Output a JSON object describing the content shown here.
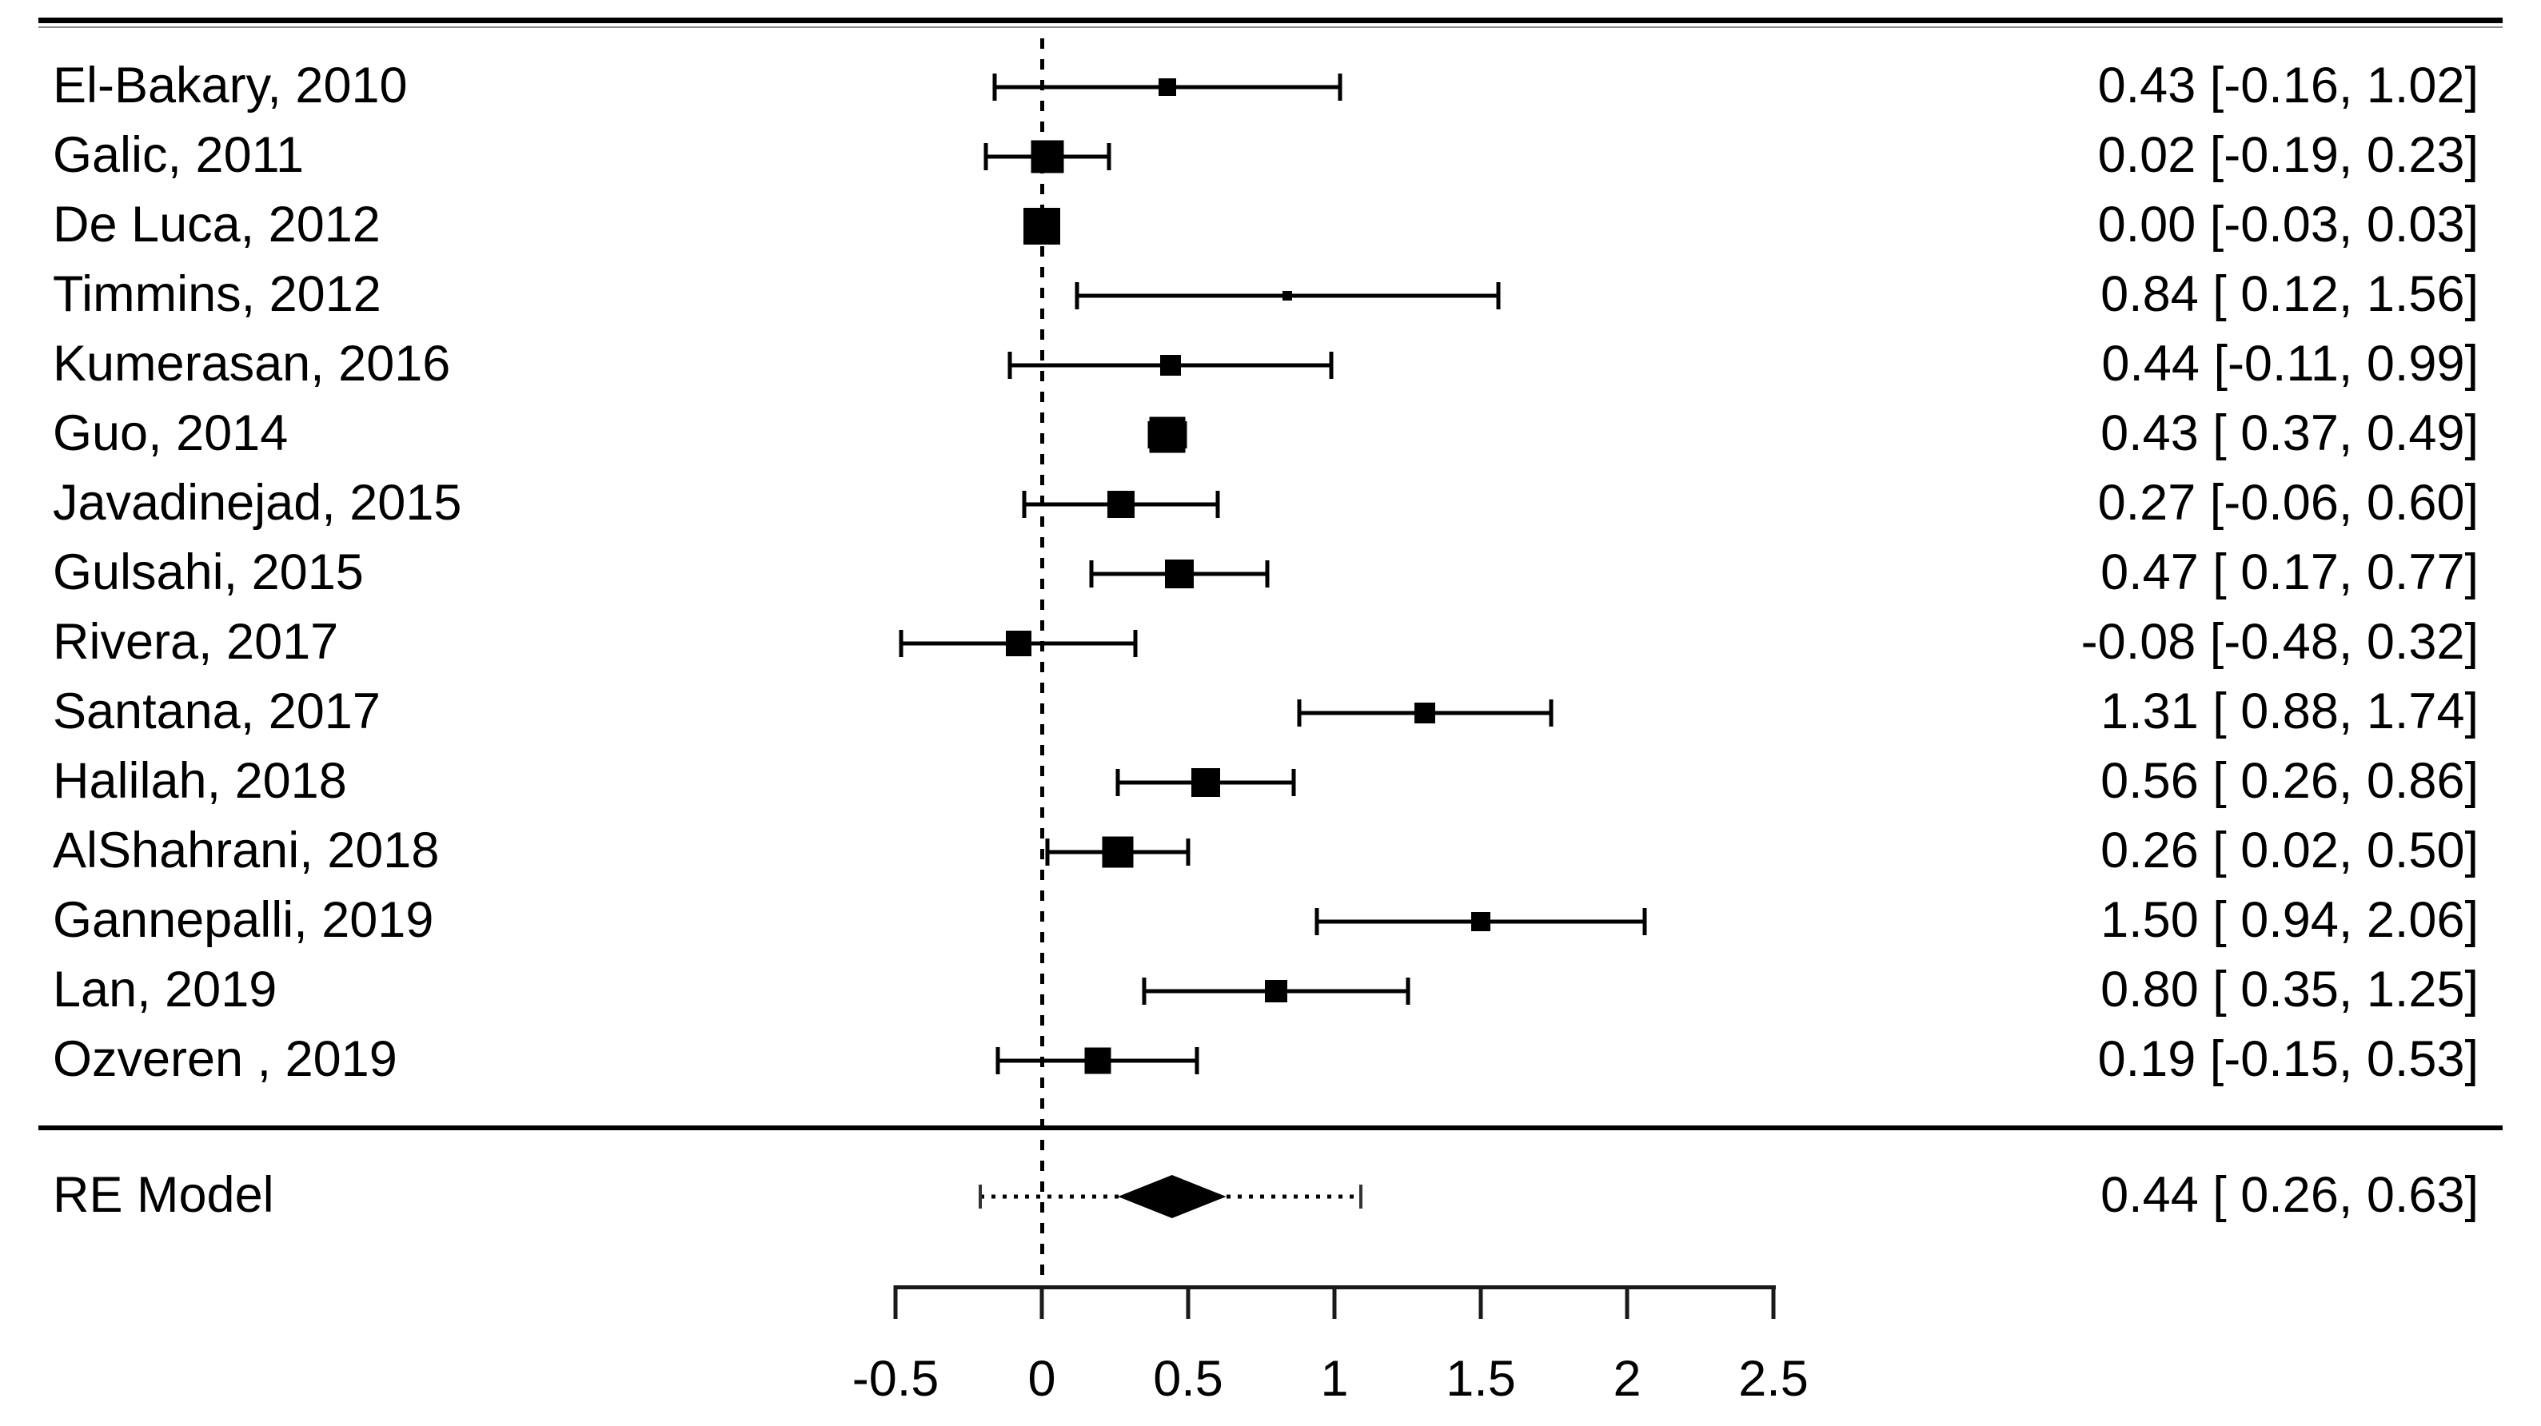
{
  "figure": {
    "kind": "forest-plot",
    "background_color": "#ffffff",
    "ink_color": "#000000"
  },
  "chart_data": {
    "type": "scatter",
    "subtype": "forest-plot-meta-analysis",
    "title": "",
    "xlabel": "",
    "ylabel": "",
    "x_axis": {
      "range": [
        -0.5,
        2.5
      ],
      "tick_values": [
        -0.5,
        0,
        0.5,
        1,
        1.5,
        2,
        2.5
      ],
      "tick_labels": [
        "-0.5",
        "0",
        "0.5",
        "1",
        "1.5",
        "2",
        "2.5"
      ],
      "reference_line_value": 0,
      "reference_line_style": "dashed"
    },
    "studies": [
      {
        "label": "El-Bakary, 2010",
        "estimate": 0.43,
        "ci_lower": -0.16,
        "ci_upper": 1.02,
        "estimate_text": "0.43 [-0.16, 1.02]",
        "marker_size": 22
      },
      {
        "label": "Galic, 2011",
        "estimate": 0.02,
        "ci_lower": -0.19,
        "ci_upper": 0.23,
        "estimate_text": "0.02 [-0.19, 0.23]",
        "marker_size": 41
      },
      {
        "label": "De Luca, 2012",
        "estimate": 0.0,
        "ci_lower": -0.03,
        "ci_upper": 0.03,
        "estimate_text": "0.00 [-0.03, 0.03]",
        "marker_size": 46
      },
      {
        "label": "Timmins, 2012",
        "estimate": 0.84,
        "ci_lower": 0.12,
        "ci_upper": 1.56,
        "estimate_text": "0.84 [ 0.12, 1.56]",
        "marker_size": 12
      },
      {
        "label": "Kumerasan, 2016",
        "estimate": 0.44,
        "ci_lower": -0.11,
        "ci_upper": 0.99,
        "estimate_text": "0.44 [-0.11, 0.99]",
        "marker_size": 26
      },
      {
        "label": "Guo, 2014",
        "estimate": 0.43,
        "ci_lower": 0.37,
        "ci_upper": 0.49,
        "estimate_text": "0.43 [ 0.37, 0.49]",
        "marker_size": 45
      },
      {
        "label": "Javadinejad, 2015",
        "estimate": 0.27,
        "ci_lower": -0.06,
        "ci_upper": 0.6,
        "estimate_text": "0.27 [-0.06, 0.60]",
        "marker_size": 34
      },
      {
        "label": "Gulsahi, 2015",
        "estimate": 0.47,
        "ci_lower": 0.17,
        "ci_upper": 0.77,
        "estimate_text": "0.47 [ 0.17, 0.77]",
        "marker_size": 36
      },
      {
        "label": "Rivera, 2017",
        "estimate": -0.08,
        "ci_lower": -0.48,
        "ci_upper": 0.32,
        "estimate_text": "-0.08 [-0.48, 0.32]",
        "marker_size": 32
      },
      {
        "label": "Santana, 2017",
        "estimate": 1.31,
        "ci_lower": 0.88,
        "ci_upper": 1.74,
        "estimate_text": "1.31 [ 0.88, 1.74]",
        "marker_size": 26
      },
      {
        "label": "Halilah, 2018",
        "estimate": 0.56,
        "ci_lower": 0.26,
        "ci_upper": 0.86,
        "estimate_text": "0.56 [ 0.26, 0.86]",
        "marker_size": 36
      },
      {
        "label": "AlShahrani, 2018",
        "estimate": 0.26,
        "ci_lower": 0.02,
        "ci_upper": 0.5,
        "estimate_text": "0.26 [ 0.02, 0.50]",
        "marker_size": 39
      },
      {
        "label": "Gannepalli, 2019",
        "estimate": 1.5,
        "ci_lower": 0.94,
        "ci_upper": 2.06,
        "estimate_text": "1.50 [ 0.94, 2.06]",
        "marker_size": 24
      },
      {
        "label": "Lan, 2019",
        "estimate": 0.8,
        "ci_lower": 0.35,
        "ci_upper": 1.25,
        "estimate_text": "0.80 [ 0.35, 1.25]",
        "marker_size": 28
      },
      {
        "label": "Ozveren , 2019",
        "estimate": 0.19,
        "ci_lower": -0.15,
        "ci_upper": 0.53,
        "estimate_text": "0.19 [-0.15, 0.53]",
        "marker_size": 33
      }
    ],
    "summary": {
      "label": "RE Model",
      "estimate": 0.44,
      "ci_lower": 0.26,
      "ci_upper": 0.63,
      "estimate_text": "0.44 [ 0.26, 0.63]",
      "prediction_interval_lower": -0.21,
      "prediction_interval_upper": 1.09
    }
  }
}
